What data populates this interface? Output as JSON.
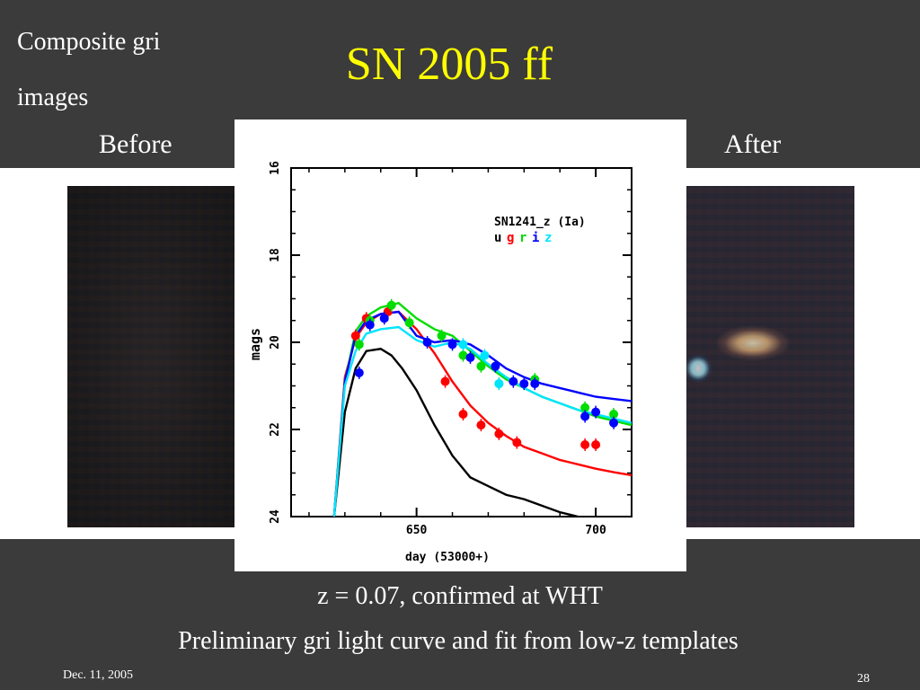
{
  "slide": {
    "corner_line1": "Composite gri",
    "corner_line2": "images",
    "title": "SN 2005 ff",
    "label_before": "Before",
    "label_after": "After",
    "caption1": "z = 0.07, confirmed at WHT",
    "caption2": "Preliminary gri light curve and fit from low-z templates",
    "date": "Dec. 11, 2005",
    "page": "28"
  },
  "chart_data": {
    "type": "line",
    "title": "SN1241_z (Ia)",
    "xlabel": "day (53000+)",
    "ylabel": "mags",
    "xlim": [
      615,
      710
    ],
    "ylim": [
      24,
      16
    ],
    "x_ticks": [
      650,
      700
    ],
    "y_ticks": [
      16,
      18,
      20,
      22,
      24
    ],
    "band_legend": [
      {
        "name": "u",
        "color": "#000000"
      },
      {
        "name": "g",
        "color": "#ff0000"
      },
      {
        "name": "r",
        "color": "#00dd00"
      },
      {
        "name": "i",
        "color": "#0000ff"
      },
      {
        "name": "z",
        "color": "#00e5ff"
      }
    ],
    "fits": [
      {
        "band": "u",
        "color": "#000000",
        "x": [
          627,
          630,
          633,
          636,
          640,
          643,
          646,
          650,
          655,
          660,
          665,
          670,
          675,
          680,
          685,
          690,
          695
        ],
        "y": [
          24.0,
          21.6,
          20.6,
          20.2,
          20.15,
          20.3,
          20.6,
          21.1,
          21.9,
          22.6,
          23.1,
          23.3,
          23.5,
          23.6,
          23.75,
          23.9,
          24.0
        ]
      },
      {
        "band": "g",
        "color": "#ff0000",
        "x": [
          627,
          630,
          633,
          636,
          640,
          645,
          650,
          655,
          660,
          665,
          670,
          675,
          680,
          685,
          690,
          695,
          700,
          705,
          710
        ],
        "y": [
          24.0,
          20.8,
          19.9,
          19.55,
          19.35,
          19.3,
          19.7,
          20.25,
          20.9,
          21.45,
          21.85,
          22.15,
          22.4,
          22.55,
          22.7,
          22.8,
          22.9,
          22.98,
          23.05
        ]
      },
      {
        "band": "r",
        "color": "#00dd00",
        "x": [
          627,
          630,
          633,
          636,
          640,
          645,
          650,
          655,
          660,
          665,
          670,
          675,
          680,
          685,
          690,
          695,
          700,
          705,
          710
        ],
        "y": [
          24.0,
          20.9,
          19.75,
          19.4,
          19.2,
          19.1,
          19.45,
          19.7,
          19.85,
          20.2,
          20.55,
          20.85,
          21.05,
          21.25,
          21.4,
          21.55,
          21.7,
          21.8,
          21.9
        ]
      },
      {
        "band": "i",
        "color": "#0000ff",
        "x": [
          627,
          630,
          633,
          636,
          640,
          645,
          650,
          655,
          660,
          665,
          670,
          675,
          680,
          685,
          690,
          695,
          700,
          705,
          710
        ],
        "y": [
          24.0,
          20.9,
          19.85,
          19.5,
          19.35,
          19.3,
          19.85,
          20.0,
          19.95,
          20.05,
          20.3,
          20.6,
          20.8,
          20.95,
          21.05,
          21.15,
          21.25,
          21.3,
          21.35
        ]
      },
      {
        "band": "z",
        "color": "#00e5ff",
        "x": [
          627,
          630,
          633,
          636,
          640,
          645,
          650,
          655,
          660,
          665,
          670,
          675,
          680,
          685,
          690,
          695,
          700,
          705,
          710
        ],
        "y": [
          24.0,
          21.0,
          20.2,
          19.8,
          19.7,
          19.65,
          19.95,
          20.1,
          20.0,
          20.15,
          20.5,
          20.8,
          21.05,
          21.25,
          21.4,
          21.55,
          21.65,
          21.75,
          21.85
        ]
      }
    ],
    "points": [
      {
        "band": "g",
        "color": "#ff0000",
        "x": [
          633,
          636,
          642,
          658,
          663,
          668,
          673,
          678,
          697,
          700
        ],
        "y": [
          19.85,
          19.45,
          19.3,
          20.9,
          21.65,
          21.9,
          22.1,
          22.3,
          22.35,
          22.35
        ]
      },
      {
        "band": "r",
        "color": "#00dd00",
        "x": [
          634,
          637,
          643,
          648,
          657,
          663,
          668,
          673,
          683,
          697,
          705
        ],
        "y": [
          20.05,
          19.5,
          19.15,
          19.55,
          19.85,
          20.3,
          20.55,
          20.95,
          20.85,
          21.5,
          21.65
        ]
      },
      {
        "band": "i",
        "color": "#0000ff",
        "x": [
          634,
          637,
          641,
          653,
          660,
          665,
          672,
          677,
          680,
          683,
          697,
          700,
          705
        ],
        "y": [
          20.7,
          19.6,
          19.45,
          20.0,
          20.05,
          20.35,
          20.55,
          20.9,
          20.95,
          20.95,
          21.7,
          21.6,
          21.85
        ]
      },
      {
        "band": "z",
        "color": "#00e5ff",
        "x": [
          663,
          669,
          673
        ],
        "y": [
          20.05,
          20.3,
          20.95
        ]
      }
    ]
  }
}
